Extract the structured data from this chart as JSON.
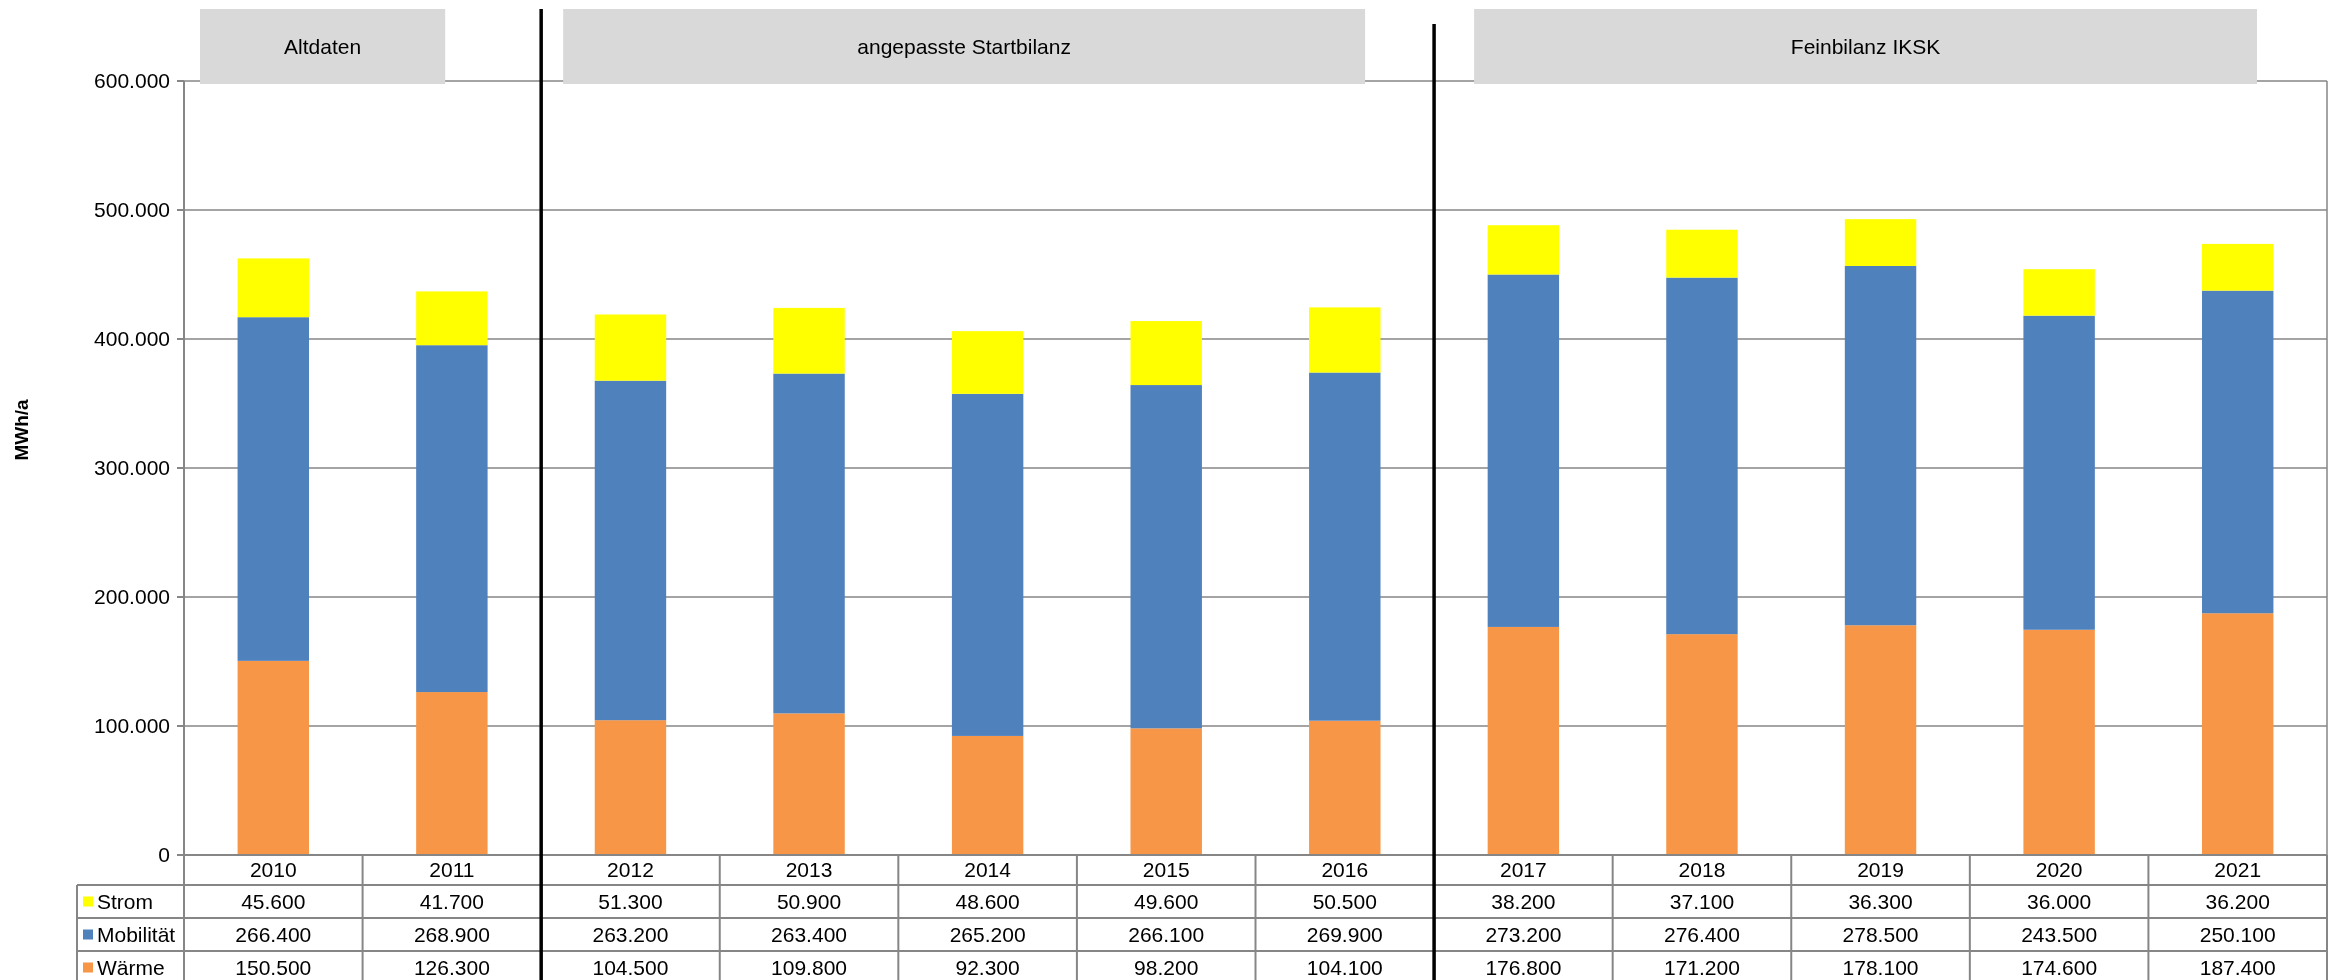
{
  "chart_data": {
    "type": "bar",
    "stacked": true,
    "ylabel": "MWh/a",
    "categories": [
      "2010",
      "2011",
      "2012",
      "2013",
      "2014",
      "2015",
      "2016",
      "2017",
      "2018",
      "2019",
      "2020",
      "2021"
    ],
    "series": [
      {
        "name": "Wärme",
        "color": "#f79646",
        "values": [
          150500,
          126300,
          104500,
          109800,
          92300,
          98200,
          104100,
          176800,
          171200,
          178100,
          174600,
          187400
        ],
        "value_labels": [
          "150.500",
          "126.300",
          "104.500",
          "109.800",
          "92.300",
          "98.200",
          "104.100",
          "176.800",
          "171.200",
          "178.100",
          "174.600",
          "187.400"
        ]
      },
      {
        "name": "Mobilität",
        "color": "#4f81bd",
        "values": [
          266400,
          268900,
          263200,
          263400,
          265200,
          266100,
          269900,
          273200,
          276400,
          278500,
          243500,
          250100
        ],
        "value_labels": [
          "266.400",
          "268.900",
          "263.200",
          "263.400",
          "265.200",
          "266.100",
          "269.900",
          "273.200",
          "276.400",
          "278.500",
          "243.500",
          "250.100"
        ]
      },
      {
        "name": "Strom",
        "color": "#ffff00",
        "values": [
          45600,
          41700,
          51300,
          50900,
          48600,
          49600,
          50500,
          38200,
          37100,
          36300,
          36000,
          36200
        ],
        "value_labels": [
          "45.600",
          "41.700",
          "51.300",
          "50.900",
          "48.600",
          "49.600",
          "50.500",
          "38.200",
          "37.100",
          "36.300",
          "36.000",
          "36.200"
        ]
      }
    ],
    "ylim": [
      0,
      600000
    ],
    "yticks": [
      0,
      {
        "value": 100000,
        "label": "100.000"
      },
      {
        "value": 200000,
        "label": "200.000"
      },
      {
        "value": 300000,
        "label": "300.000"
      },
      {
        "value": 400000,
        "label": "400.000"
      },
      {
        "value": 500000,
        "label": "500.000"
      },
      {
        "value": 600000,
        "label": "600.000"
      }
    ],
    "grid": "y",
    "legend": "bottom",
    "annotations": [
      "Altdaten",
      "angepasste Startbilanz",
      "Feinbilanz IKSK"
    ]
  }
}
